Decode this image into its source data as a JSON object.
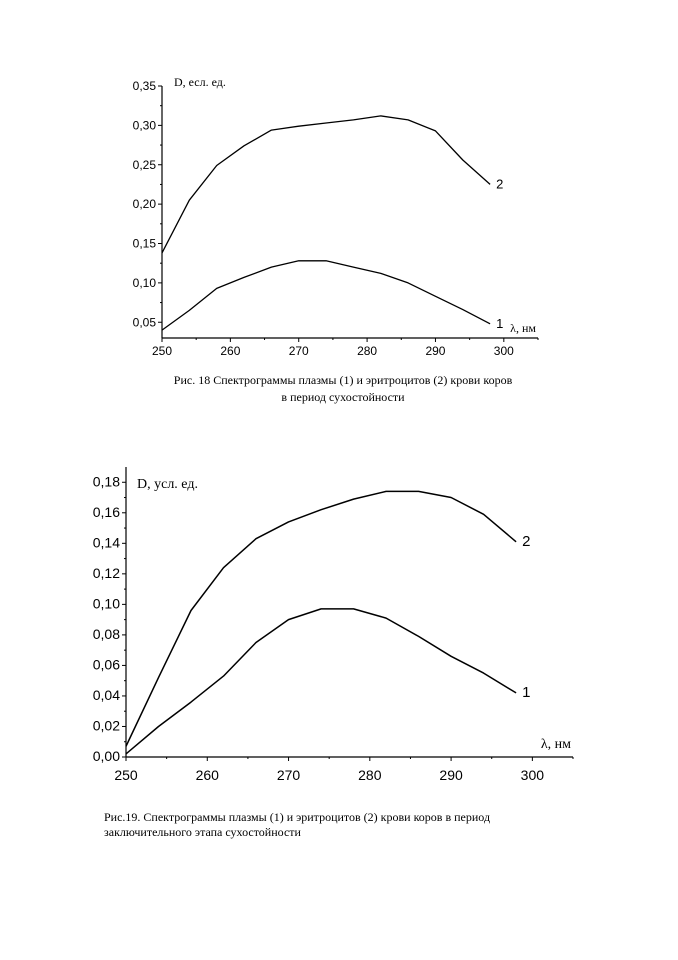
{
  "chart_data": [
    {
      "type": "line",
      "caption": [
        "Рис. 18 Спектрограммы плазмы (1) и эритроцитов (2) крови коров",
        "в период сухостойности"
      ],
      "ylabel": "D, есл. ед.",
      "xlabel": "λ, нм",
      "xlim": [
        250,
        305
      ],
      "ylim": [
        0.03,
        0.35
      ],
      "xticks": [
        "250",
        "260",
        "270",
        "280",
        "290",
        "300"
      ],
      "yticks": [
        "0,05",
        "0,10",
        "0,15",
        "0,20",
        "0,25",
        "0,30",
        "0,35"
      ],
      "grid": false,
      "series": [
        {
          "name": "1",
          "x": [
            250,
            254,
            258,
            262,
            266,
            270,
            274,
            278,
            282,
            286,
            290,
            294,
            298
          ],
          "values": [
            0.04,
            0.065,
            0.093,
            0.107,
            0.12,
            0.128,
            0.128,
            0.12,
            0.112,
            0.1,
            0.083,
            0.066,
            0.048
          ]
        },
        {
          "name": "2",
          "x": [
            250,
            254,
            258,
            262,
            266,
            270,
            274,
            278,
            282,
            286,
            290,
            294,
            298
          ],
          "values": [
            0.138,
            0.205,
            0.249,
            0.274,
            0.294,
            0.299,
            0.303,
            0.307,
            0.312,
            0.307,
            0.293,
            0.256,
            0.225
          ]
        }
      ]
    },
    {
      "type": "line",
      "caption": [
        "Рис.19. Спектрограммы плазмы (1) и эритроцитов (2) крови коров в период",
        "заключительного этапа сухостойности"
      ],
      "ylabel": "D, усл. ед.",
      "xlabel": "λ, нм",
      "xlim": [
        250,
        305
      ],
      "ylim": [
        0.0,
        0.19
      ],
      "xticks": [
        "250",
        "260",
        "270",
        "280",
        "290",
        "300"
      ],
      "yticks": [
        "0,00",
        "0,02",
        "0,04",
        "0,06",
        "0,08",
        "0,10",
        "0,12",
        "0,14",
        "0,16",
        "0,18"
      ],
      "grid": false,
      "series": [
        {
          "name": "1",
          "x": [
            250,
            254,
            258,
            262,
            266,
            270,
            274,
            278,
            282,
            286,
            290,
            294,
            298
          ],
          "values": [
            0.002,
            0.02,
            0.036,
            0.053,
            0.075,
            0.09,
            0.097,
            0.097,
            0.091,
            0.079,
            0.066,
            0.055,
            0.042
          ]
        },
        {
          "name": "2",
          "x": [
            250,
            254,
            258,
            262,
            266,
            270,
            274,
            278,
            282,
            286,
            290,
            294,
            298
          ],
          "values": [
            0.007,
            0.052,
            0.096,
            0.124,
            0.143,
            0.154,
            0.162,
            0.169,
            0.174,
            0.174,
            0.17,
            0.159,
            0.141
          ]
        }
      ]
    }
  ]
}
